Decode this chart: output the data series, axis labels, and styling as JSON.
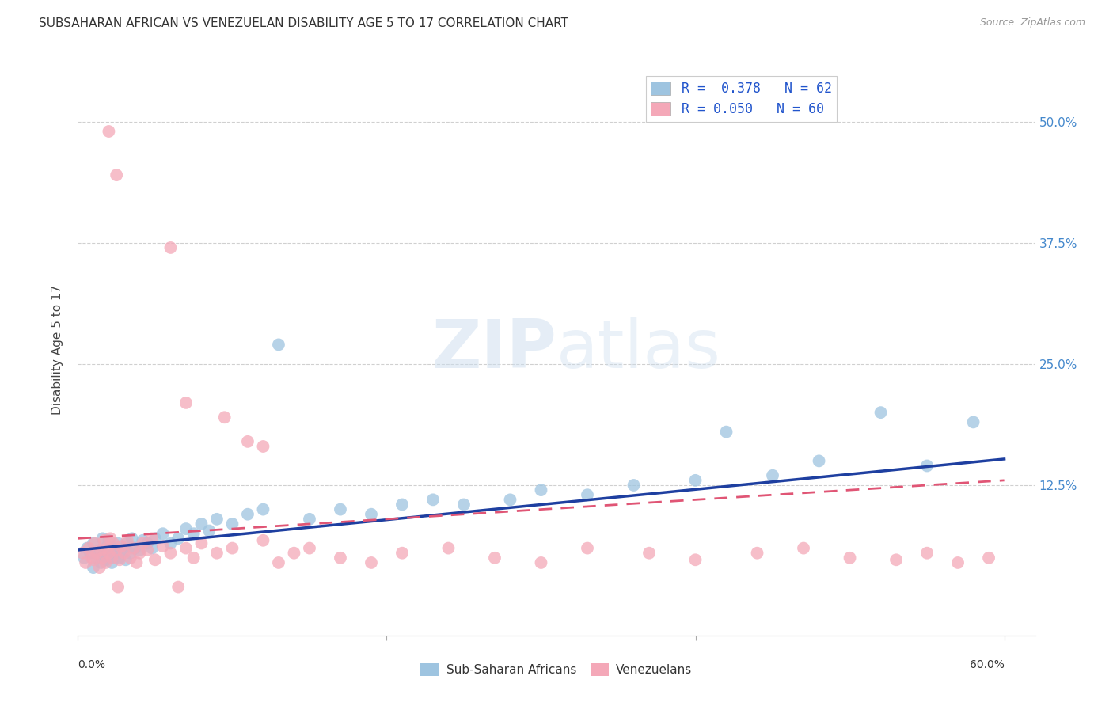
{
  "title": "SUBSAHARAN AFRICAN VS VENEZUELAN DISABILITY AGE 5 TO 17 CORRELATION CHART",
  "source": "Source: ZipAtlas.com",
  "ylabel": "Disability Age 5 to 17",
  "ytick_values": [
    0.5,
    0.375,
    0.25,
    0.125
  ],
  "ytick_labels": [
    "50.0%",
    "37.5%",
    "25.0%",
    "12.5%"
  ],
  "xlim": [
    0.0,
    0.62
  ],
  "ylim": [
    -0.03,
    0.56
  ],
  "blue_R": 0.378,
  "blue_N": 62,
  "pink_R": 0.05,
  "pink_N": 60,
  "blue_color": "#9ec4e0",
  "pink_color": "#f4a8b8",
  "blue_line_color": "#1e3fa0",
  "pink_line_color": "#e05575",
  "legend_R_color": "#2255cc",
  "background_color": "#ffffff",
  "watermark_text": "ZIPatlas",
  "blue_scatter_x": [
    0.004,
    0.006,
    0.008,
    0.01,
    0.01,
    0.012,
    0.014,
    0.015,
    0.016,
    0.017,
    0.018,
    0.019,
    0.02,
    0.02,
    0.021,
    0.022,
    0.023,
    0.024,
    0.025,
    0.026,
    0.027,
    0.028,
    0.03,
    0.031,
    0.032,
    0.034,
    0.035,
    0.037,
    0.04,
    0.042,
    0.045,
    0.048,
    0.05,
    0.055,
    0.06,
    0.065,
    0.07,
    0.075,
    0.08,
    0.085,
    0.09,
    0.1,
    0.11,
    0.12,
    0.13,
    0.15,
    0.17,
    0.19,
    0.21,
    0.23,
    0.25,
    0.28,
    0.3,
    0.33,
    0.36,
    0.4,
    0.42,
    0.45,
    0.48,
    0.52,
    0.55,
    0.58
  ],
  "blue_scatter_y": [
    0.05,
    0.06,
    0.055,
    0.04,
    0.065,
    0.05,
    0.058,
    0.045,
    0.07,
    0.055,
    0.048,
    0.062,
    0.05,
    0.068,
    0.055,
    0.045,
    0.06,
    0.05,
    0.058,
    0.065,
    0.05,
    0.055,
    0.06,
    0.048,
    0.065,
    0.055,
    0.07,
    0.06,
    0.058,
    0.068,
    0.065,
    0.06,
    0.07,
    0.075,
    0.065,
    0.07,
    0.08,
    0.075,
    0.085,
    0.078,
    0.09,
    0.085,
    0.095,
    0.1,
    0.27,
    0.09,
    0.1,
    0.095,
    0.105,
    0.11,
    0.105,
    0.11,
    0.12,
    0.115,
    0.125,
    0.13,
    0.18,
    0.135,
    0.15,
    0.2,
    0.145,
    0.19
  ],
  "pink_scatter_x": [
    0.003,
    0.005,
    0.007,
    0.009,
    0.01,
    0.011,
    0.012,
    0.014,
    0.015,
    0.016,
    0.017,
    0.018,
    0.019,
    0.02,
    0.021,
    0.022,
    0.023,
    0.025,
    0.026,
    0.027,
    0.028,
    0.03,
    0.032,
    0.034,
    0.036,
    0.038,
    0.04,
    0.042,
    0.045,
    0.048,
    0.05,
    0.055,
    0.06,
    0.065,
    0.07,
    0.075,
    0.08,
    0.09,
    0.1,
    0.11,
    0.12,
    0.13,
    0.14,
    0.15,
    0.17,
    0.19,
    0.21,
    0.24,
    0.27,
    0.3,
    0.33,
    0.37,
    0.4,
    0.44,
    0.47,
    0.5,
    0.53,
    0.55,
    0.57,
    0.59
  ],
  "pink_scatter_y": [
    0.055,
    0.045,
    0.06,
    0.05,
    0.048,
    0.065,
    0.055,
    0.04,
    0.058,
    0.05,
    0.068,
    0.045,
    0.06,
    0.055,
    0.07,
    0.05,
    0.065,
    0.058,
    0.02,
    0.048,
    0.062,
    0.055,
    0.068,
    0.05,
    0.06,
    0.045,
    0.055,
    0.065,
    0.058,
    0.07,
    0.048,
    0.062,
    0.055,
    0.02,
    0.06,
    0.05,
    0.065,
    0.055,
    0.06,
    0.17,
    0.068,
    0.045,
    0.055,
    0.06,
    0.05,
    0.045,
    0.055,
    0.06,
    0.05,
    0.045,
    0.06,
    0.055,
    0.048,
    0.055,
    0.06,
    0.05,
    0.048,
    0.055,
    0.045,
    0.05
  ],
  "pink_outliers_x": [
    0.02,
    0.025,
    0.06,
    0.07,
    0.095,
    0.12
  ],
  "pink_outliers_y": [
    0.49,
    0.445,
    0.37,
    0.21,
    0.195,
    0.165
  ],
  "blue_line_x0": 0.0,
  "blue_line_y0": 0.058,
  "blue_line_x1": 0.6,
  "blue_line_y1": 0.152,
  "pink_line_x0": 0.0,
  "pink_line_y0": 0.07,
  "pink_line_x1": 0.6,
  "pink_line_y1": 0.13
}
